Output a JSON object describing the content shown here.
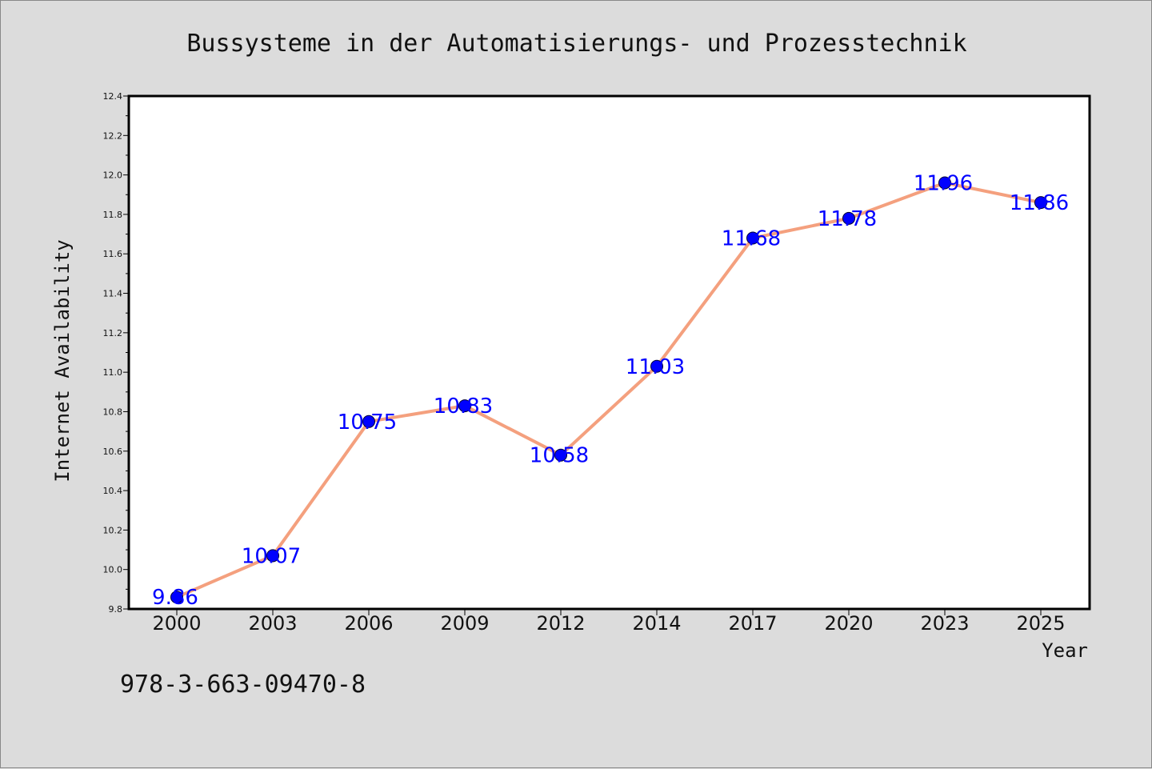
{
  "chart_data": {
    "type": "line",
    "title": "Bussysteme in der Automatisierungs- und Prozesstechnik",
    "xlabel": "Year",
    "ylabel": "Internet Availability",
    "categories": [
      "2000",
      "2003",
      "2006",
      "2009",
      "2012",
      "2014",
      "2017",
      "2020",
      "2023",
      "2025"
    ],
    "series": [
      {
        "values": [
          9.86,
          10.07,
          10.75,
          10.83,
          10.58,
          11.03,
          11.68,
          11.78,
          11.96,
          11.86
        ],
        "value_labels": [
          "9.86",
          "10.07",
          "10.75",
          "10.83",
          "10.58",
          "11.03",
          "11.68",
          "11.78",
          "11.96",
          "11.86"
        ],
        "line_color": "#f4a07e",
        "marker_color": "#0000ff",
        "label_color": "#0000ff"
      }
    ],
    "ylim": [
      9.8,
      12.4
    ],
    "yticks": [
      "9.8",
      "10.0",
      "10.2",
      "10.4",
      "10.6",
      "10.8",
      "11.0",
      "11.2",
      "11.4",
      "11.6",
      "11.8",
      "12.0",
      "12.2",
      "12.4"
    ],
    "grid": false,
    "legend": "none",
    "colors": {
      "page_background": "#dcdcdc",
      "plot_background": "#ffffff",
      "axis": "#000000"
    }
  },
  "footer": {
    "isbn": "978-3-663-09470-8"
  }
}
